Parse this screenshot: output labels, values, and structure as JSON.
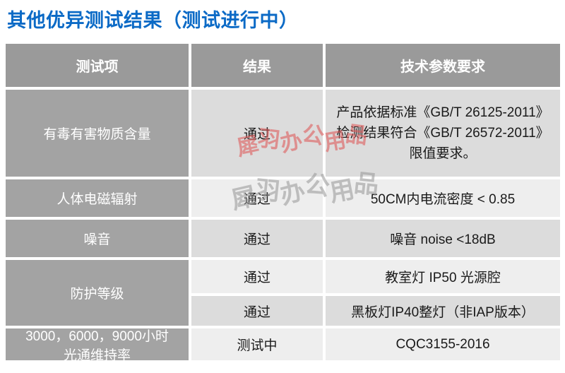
{
  "title": "其他优异测试结果（测试进行中）",
  "colors": {
    "title_blue": "#0b6ac6",
    "header_bg": "#9a9a9a",
    "row_label_bg": "#a3a3a3",
    "band_dark": "#dcdcdc",
    "band_light": "#eeeeee",
    "watermark_red": "#dd5c5c",
    "watermark_gray": "#969696"
  },
  "table": {
    "headers": [
      "测试项",
      "结果",
      "技术参数要求"
    ],
    "rows": [
      {
        "item": "有毒有害物质含量",
        "result": "通过",
        "req": "产品依据标准《GB/T 26125-2011》\n检测结果符合《GB/T 26572-2011》\n限值要求。"
      },
      {
        "item": "人体电磁辐射",
        "result": "通过",
        "req": "50CM内电流密度 < 0.85"
      },
      {
        "item": "噪音",
        "result": "通过",
        "req": "噪音 noise <18dB"
      },
      {
        "item": "防护等级",
        "sub": [
          {
            "result": "通过",
            "req": "教室灯 IP50 光源腔"
          },
          {
            "result": "通过",
            "req": "黑板灯IP40整灯（非IAP版本）"
          }
        ]
      },
      {
        "item": "3000，6000，9000小时\n光通维持率",
        "result": "测试中",
        "req": "CQC3155-2016"
      }
    ]
  },
  "watermarks": {
    "red": "犀羽办公用品",
    "gray": "犀羽办公用品"
  }
}
